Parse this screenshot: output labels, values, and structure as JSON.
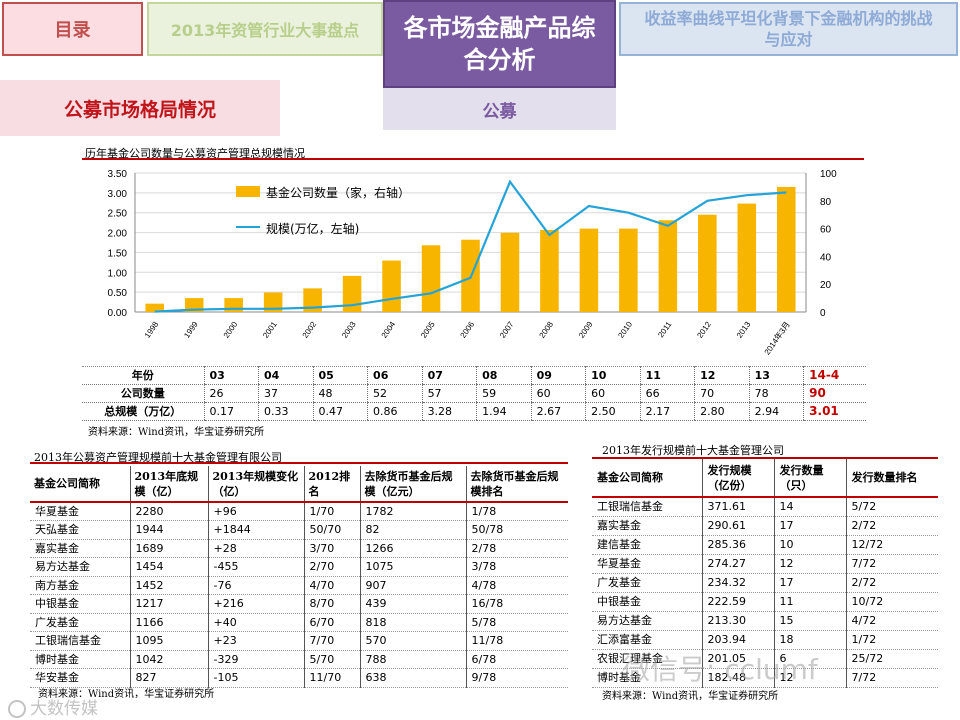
{
  "nav": {
    "toc": "目录",
    "review": "2013年资管行业大事盘点",
    "analysis": "各市场金融产品综合分析",
    "challenge": "收益率曲线平坦化背景下金融机构的挑战与应对",
    "market": "公募市场格局情况",
    "mutual": "公募"
  },
  "chart_data": {
    "type": "bar",
    "title": "历年基金公司数量与公募资产管理总规模情况",
    "categories": [
      "1998",
      "1999",
      "2000",
      "2001",
      "2002",
      "2003",
      "2004",
      "2005",
      "2006",
      "2007",
      "2008",
      "2009",
      "2010",
      "2011",
      "2012",
      "2013",
      "2014年3月"
    ],
    "series": [
      {
        "name": "基金公司数量（家，右轴）",
        "type": "bar",
        "axis": "right",
        "values": [
          6,
          10,
          10,
          14,
          17,
          26,
          37,
          48,
          52,
          57,
          59,
          60,
          60,
          66,
          70,
          78,
          90
        ]
      },
      {
        "name": "规模(万亿，左轴)",
        "type": "line",
        "axis": "left",
        "values": [
          0.01,
          0.06,
          0.08,
          0.08,
          0.11,
          0.17,
          0.33,
          0.47,
          0.86,
          3.28,
          1.94,
          2.67,
          2.5,
          2.17,
          2.8,
          2.94,
          3.01
        ]
      }
    ],
    "ylim_left": [
      0,
      3.5
    ],
    "left_ticks": [
      "0.00",
      "0.50",
      "1.00",
      "1.50",
      "2.00",
      "2.50",
      "3.00",
      "3.50"
    ],
    "ylim_right": [
      0,
      100
    ],
    "right_ticks": [
      "0",
      "20",
      "40",
      "60",
      "80",
      "100"
    ],
    "grid": true,
    "legend": "top-left",
    "colors": {
      "bar": "#f7b500",
      "line": "#23a3d8"
    }
  },
  "year_table": {
    "rows": [
      [
        "年份",
        "03",
        "04",
        "05",
        "06",
        "07",
        "08",
        "09",
        "10",
        "11",
        "12",
        "13",
        "14-4"
      ],
      [
        "公司数量",
        "26",
        "37",
        "48",
        "52",
        "57",
        "59",
        "60",
        "60",
        "66",
        "70",
        "78",
        "90"
      ],
      [
        "总规模（万亿）",
        "0.17",
        "0.33",
        "0.47",
        "0.86",
        "3.28",
        "1.94",
        "2.67",
        "2.50",
        "2.17",
        "2.80",
        "2.94",
        "3.01"
      ]
    ],
    "source": "资料来源：Wind资讯，华宝证券研究所"
  },
  "top10_aum": {
    "title": "2013年公募资产管理规模前十大基金管理有限公司",
    "headers": [
      "基金公司简称",
      "2013年底规模（亿）",
      "2013年规模变化（亿）",
      "2012排名",
      "去除货币基金后规模（亿元）",
      "去除货币基金后规模排名"
    ],
    "rows": [
      [
        "华夏基金",
        "2280",
        "+96",
        "1/70",
        "1782",
        "1/78"
      ],
      [
        "天弘基金",
        "1944",
        "+1844",
        "50/70",
        "82",
        "50/78"
      ],
      [
        "嘉实基金",
        "1689",
        "+28",
        "3/70",
        "1266",
        "2/78"
      ],
      [
        "易方达基金",
        "1454",
        "-455",
        "2/70",
        "1075",
        "3/78"
      ],
      [
        "南方基金",
        "1452",
        "-76",
        "4/70",
        "907",
        "4/78"
      ],
      [
        "中银基金",
        "1217",
        "+216",
        "8/70",
        "439",
        "16/78"
      ],
      [
        "广发基金",
        "1166",
        "+40",
        "6/70",
        "818",
        "5/78"
      ],
      [
        "工银瑞信基金",
        "1095",
        "+23",
        "7/70",
        "570",
        "11/78"
      ],
      [
        "博时基金",
        "1042",
        "-329",
        "5/70",
        "788",
        "6/78"
      ],
      [
        "华安基金",
        "827",
        "-105",
        "11/70",
        "638",
        "9/78"
      ]
    ],
    "source": "资料来源：Wind资讯，华宝证券研究所"
  },
  "top10_issuance": {
    "title": "2013年发行规模前十大基金管理公司",
    "headers": [
      "基金公司简称",
      "发行规模（亿份）",
      "发行数量（只）",
      "发行数量排名"
    ],
    "rows": [
      [
        "工银瑞信基金",
        "371.61",
        "14",
        "5/72"
      ],
      [
        "嘉实基金",
        "290.61",
        "17",
        "2/72"
      ],
      [
        "建信基金",
        "285.36",
        "10",
        "12/72"
      ],
      [
        "华夏基金",
        "274.27",
        "12",
        "7/72"
      ],
      [
        "广发基金",
        "234.32",
        "17",
        "2/72"
      ],
      [
        "中银基金",
        "222.59",
        "11",
        "10/72"
      ],
      [
        "易方达基金",
        "213.30",
        "15",
        "4/72"
      ],
      [
        "汇添富基金",
        "203.94",
        "18",
        "1/72"
      ],
      [
        "农银汇理基金",
        "201.05",
        "6",
        "25/72"
      ],
      [
        "博时基金",
        "182.48",
        "12",
        "7/72"
      ]
    ],
    "source": "资料来源：Wind资讯，华宝证券研究所"
  },
  "watermark": {
    "right": "微信号: cclumf",
    "left": "大数传媒"
  }
}
